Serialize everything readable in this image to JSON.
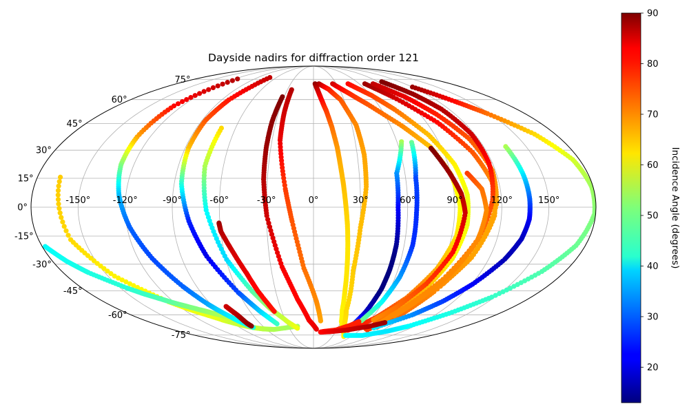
{
  "chart_data": {
    "type": "scatter",
    "projection": "mollweide",
    "title": "Dayside nadirs for diffraction order 121",
    "xlabel": "",
    "ylabel": "",
    "x_ticks": [
      "-150°",
      "-120°",
      "-90°",
      "-60°",
      "-30°",
      "0°",
      "30°",
      "60°",
      "90°",
      "120°",
      "150°"
    ],
    "x_tick_values": [
      -150,
      -120,
      -90,
      -60,
      -30,
      0,
      30,
      60,
      90,
      120,
      150
    ],
    "y_ticks": [
      "-75°",
      "-60°",
      "-45°",
      "-30°",
      "-15°",
      "0°",
      "15°",
      "30°",
      "45°",
      "60°",
      "75°"
    ],
    "y_tick_values": [
      -75,
      -60,
      -45,
      -30,
      -15,
      0,
      15,
      30,
      45,
      60,
      75
    ],
    "xlim": [
      -180,
      180
    ],
    "ylim": [
      -90,
      90
    ],
    "grid": true,
    "colormap": "jet",
    "colorbar": {
      "label": "Incidence Angle (degrees)",
      "range": [
        13,
        90
      ],
      "ticks": [
        "20",
        "30",
        "40",
        "50",
        "60",
        "70",
        "80",
        "90"
      ],
      "tick_values": [
        20,
        30,
        40,
        50,
        60,
        70,
        80,
        90
      ]
    },
    "series": [
      {
        "lon": [
          -165.1,
          -159,
          -145.3,
          -124.4,
          -111.9,
          -96.9,
          -93.8,
          -90.6,
          -87.8,
          -84.4,
          -80.8,
          -76.2,
          -70.9,
          -62.9,
          -50.4,
          -18.9
        ],
        "lat": [
          15.6,
          -16.9,
          -36.6,
          -51.7,
          -57.7,
          -63.3,
          -64.3,
          -65.2,
          -66.0,
          -66.9,
          -67.7,
          -68.6,
          -69.4,
          -70.1,
          -70.5,
          -68.1
        ],
        "inc": [
          65,
          64,
          62,
          61,
          60,
          59,
          58,
          57,
          57,
          57,
          57,
          57,
          57,
          56,
          55,
          54
        ]
      },
      {
        "lon": [
          -178,
          -170.1,
          -161.9,
          -145.2,
          -136.9,
          -131.2,
          -126.4,
          -121.5,
          -117.4,
          -113.5,
          -104.8,
          -100.8,
          -96.6,
          -92.2,
          -86.8
        ],
        "lat": [
          -20.5,
          -28.5,
          -34.6,
          -43.3,
          -46.9,
          -48.8,
          -50.5,
          -52.3,
          -53.5,
          -54.5,
          -56.9,
          -57.9,
          -59.1,
          -60.2,
          -61.6
        ],
        "inc": [
          42,
          43,
          44,
          45,
          46,
          47,
          48,
          49,
          50,
          51,
          52,
          53,
          54,
          55,
          56
        ]
      },
      {
        "lon": [
          -115.9,
          -127.7,
          -129.6,
          -128.6,
          -124.4,
          -118.4,
          -110.3,
          -100.6,
          -92.7,
          -88.1,
          -80.7,
          -73.4
        ],
        "lat": [
          75.3,
          55.9,
          37.4,
          22.2,
          6.3,
          -10.1,
          -26.8,
          -42.5,
          -53.1,
          -57.8,
          -64.4,
          -69.0
        ],
        "inc": [
          86,
          80,
          68,
          52,
          37,
          30,
          28,
          30,
          35,
          39,
          42,
          44
        ]
      },
      {
        "lon": [
          -70.6,
          -83.1,
          -87.3,
          -87.7,
          -85.3,
          -79.8,
          -72.6,
          -60.1,
          -50.5,
          -41.3
        ],
        "lat": [
          76.6,
          59.8,
          46.9,
          31.1,
          12.1,
          -7.2,
          -25.7,
          -46.1,
          -57.7,
          -66.3
        ],
        "inc": [
          85,
          79,
          74,
          66,
          45,
          25,
          21,
          28,
          38,
          46
        ]
      },
      {
        "lon": [
          -70.8,
          -72.3,
          -68.4,
          -59.6,
          -48.8,
          -40,
          -27.7,
          -19.9
        ],
        "lat": [
          42.4,
          21.4,
          -1.5,
          -27.4,
          -45.1,
          -55.7,
          -65.2,
          -69.6
        ],
        "inc": [
          64,
          55,
          42,
          39,
          48,
          54,
          58,
          60
        ]
      },
      {
        "lon": [
          -78.4,
          -76.9,
          -75.3,
          -74.8,
          -74.6,
          -73.5
        ],
        "lat": [
          -54.6,
          -57.2,
          -60.0,
          -62.5,
          -65.8,
          -68.0
        ],
        "inc": [
          84,
          85,
          86,
          87,
          88,
          89
        ]
      },
      {
        "lon": [
          -60.6,
          -59.9,
          -54.8,
          -48.3,
          -44,
          -37.1
        ],
        "lat": [
          -8.2,
          -12.6,
          -22.2,
          -34.9,
          -45.4,
          -57.8
        ],
        "inc": [
          88,
          86,
          84,
          82,
          80,
          79
        ]
      },
      {
        "lon": [
          -31.8,
          -33.2,
          -33.2,
          -32.4,
          -29.8,
          -22.1,
          -13.5,
          -4.8,
          3.8
        ],
        "lat": [
          61.9,
          46.1,
          31.4,
          14.4,
          -4.4,
          -31.5,
          -50.0,
          -63.6,
          -70.3
        ],
        "inc": [
          90,
          89,
          88,
          86,
          84,
          81,
          80,
          81,
          82
        ]
      },
      {
        "lon": [
          -25.1,
          -25.1,
          -24.2,
          -18.1,
          -13.7,
          -6.8,
          2.4,
          7.7
        ],
        "lat": [
          66.9,
          51.3,
          35.5,
          9.5,
          -7.4,
          -32.2,
          -51.2,
          -64.2
        ],
        "inc": [
          86,
          84,
          82,
          76,
          74,
          72,
          70,
          68
        ]
      },
      {
        "lon": [
          2.1,
          5.2,
          8.4,
          11.3,
          14.2,
          16.7,
          18,
          19.4,
          20.6,
          21.8,
          22.8,
          23.7,
          24.9,
          26.8,
          30.4,
          37.3,
          46.8
        ],
        "lat": [
          71.4,
          65.8,
          58.8,
          52.4,
          43.1,
          31.5,
          21.6,
          11.3,
          1.2,
          -9.2,
          -21.2,
          -32.4,
          -45.3,
          -56.9,
          -64.7,
          -70.5,
          -75.3
        ],
        "inc": [
          89,
          84,
          80,
          76,
          72,
          69,
          67,
          66,
          65,
          64,
          63,
          63,
          63,
          62,
          62,
          62,
          62
        ]
      },
      {
        "lon": [
          7.1,
          17.5,
          26.5,
          33.4,
          34.8,
          34,
          30.2,
          28.3,
          30.7,
          37.2,
          48.3
        ],
        "lat": [
          71.4,
          67.3,
          60.1,
          44.2,
          27.6,
          10.7,
          -10.5,
          -33.5,
          -57.4,
          -70.6,
          -76.3
        ],
        "inc": [
          87,
          79,
          74,
          70,
          68,
          67,
          66,
          65,
          64,
          63,
          62
        ]
      },
      {
        "lon": [
          25.1,
          37.6,
          50.6,
          68.7,
          82.3,
          90.2,
          93.5,
          93.1,
          87.4,
          77.4,
          63.9,
          52.6,
          44.4
        ],
        "lat": [
          71.4,
          64.7,
          56.8,
          43.9,
          31.8,
          16.7,
          0.3,
          -14.9,
          -32.4,
          -49.2,
          -62.0,
          -68.3,
          -71.1
        ],
        "inc": [
          84,
          78,
          74,
          70,
          66,
          62,
          61,
          63,
          67,
          72,
          76,
          79,
          80
        ]
      },
      {
        "lon": [
          63.3,
          54.6,
          53.9,
          54.8,
          54.2,
          53.1,
          49.6,
          44.1
        ],
        "lat": [
          34.7,
          17.6,
          -0.1,
          -19.3,
          -32.8,
          -44.0,
          -58.2,
          -69.8
        ],
        "inc": [
          55,
          34,
          23,
          15,
          12,
          12,
          18,
          32
        ]
      },
      {
        "lon": [
          70.4,
          66.6,
          65.7,
          65.6,
          63.2,
          58.7,
          51.4
        ],
        "lat": [
          34.3,
          15.1,
          -2.8,
          -20.0,
          -37.2,
          -51.7,
          -64.0
        ],
        "inc": [
          50,
          28,
          26,
          26,
          34,
          42,
          50
        ]
      },
      {
        "lon": [
          45.4,
          60.3,
          71.7,
          85.3,
          94.3,
          98.4,
          98.7,
          95,
          87.3,
          76.9,
          66.5
        ],
        "lat": [
          71.4,
          63.1,
          53.6,
          38.5,
          22.3,
          6.3,
          -9.2,
          -27.0,
          -43.3,
          -58.2,
          -70.2
        ],
        "inc": [
          80,
          76,
          72,
          66,
          62,
          60,
          60,
          62,
          66,
          70,
          74
        ]
      },
      {
        "lon": [
          67.5,
          81.3,
          98.7,
          110,
          115.6,
          115.6,
          107.8,
          97.3,
          83.4,
          69.6
        ],
        "lat": [
          71.4,
          61.6,
          45.8,
          28.8,
          13.6,
          -4.4,
          -26.4,
          -42.3,
          -56.8,
          -70.9
        ],
        "inc": [
          88,
          84,
          80,
          74,
          70,
          68,
          68,
          70,
          72,
          76
        ]
      },
      {
        "lon": [
          78.3,
          93.4,
          104.1,
          113.5,
          118,
          116.6,
          108.3,
          95.9,
          86.6,
          76.8
        ],
        "lat": [
          71.4,
          61.9,
          50.6,
          36.2,
          19.2,
          1.4,
          -23.2,
          -45.6,
          -58.7,
          -68.8
        ],
        "inc": [
          85,
          82,
          78,
          74,
          70,
          68,
          68,
          70,
          72,
          74
        ]
      },
      {
        "lon": [
          94.8,
          105.9,
          113.3,
          117.6,
          117.7,
          114.3,
          107.6,
          95.9,
          82.6,
          73.6
        ],
        "lat": [
          73.0,
          63.9,
          53.8,
          39.0,
          22.9,
          4.0,
          -16.6,
          -38.4,
          -55.8,
          -65.8
        ],
        "inc": [
          90,
          88,
          86,
          84,
          80,
          75,
          72,
          70,
          70,
          70
        ]
      },
      {
        "lon": [
          120.3,
          136.1,
          148.1,
          164.6,
          175.5,
          179.1,
          179.3,
          173.8,
          163.5,
          147.4,
          131.2,
          112.5,
          98.6,
          74.8,
          48.9
        ],
        "lat": [
          68.9,
          58.8,
          51.0,
          38.9,
          24.9,
          10.6,
          -3.2,
          -20.0,
          -34.0,
          -48.8,
          -59.1,
          -68.1,
          -71.9,
          -75.3,
          -75.3
        ],
        "inc": [
          88,
          80,
          72,
          64,
          58,
          54,
          52,
          50,
          48,
          46,
          44,
          42,
          40,
          41,
          42
        ]
      },
      {
        "lon": [
          135.6,
          137.4,
          138,
          138,
          136,
          131.1,
          121,
          110.5,
          97.2,
          74.2
        ],
        "lat": [
          32.0,
          16.8,
          4.4,
          -6.3,
          -16.6,
          -27.3,
          -41.2,
          -51.5,
          -60.2,
          -69.3
        ],
        "inc": [
          55,
          40,
          30,
          22,
          18,
          17,
          22,
          27,
          33,
          40
        ]
      },
      {
        "lon": [
          82.4,
          89.3,
          94.6,
          96.8,
          93.7,
          85.6,
          74.8,
          63.4
        ],
        "lat": [
          31.1,
          18.0,
          7.0,
          -2.9,
          -23.5,
          -41.0,
          -55.1,
          -63.5
        ],
        "inc": [
          90,
          88,
          86,
          84,
          80,
          76,
          72,
          70
        ]
      },
      {
        "lon": [
          100.9,
          108.1,
          110.3,
          107.5,
          99,
          87.8,
          80.5
        ],
        "lat": [
          17.7,
          9.4,
          -1.6,
          -17.1,
          -35.4,
          -52.0,
          -60.7
        ],
        "inc": [
          76,
          72,
          70,
          70,
          70,
          70,
          70
        ]
      },
      {
        "lon": [
          49.4,
          43.3,
          29.4,
          14.8,
          9.6,
          22.5,
          41.1,
          65.6,
          79.1
        ],
        "lat": [
          -64.7,
          -67.3,
          -70.9,
          -72.0,
          -72.6,
          -72.2,
          -71.1,
          -68.3,
          -65.4
        ],
        "inc": [
          78,
          78,
          78,
          79,
          80,
          82,
          84,
          86,
          88
        ]
      }
    ]
  }
}
